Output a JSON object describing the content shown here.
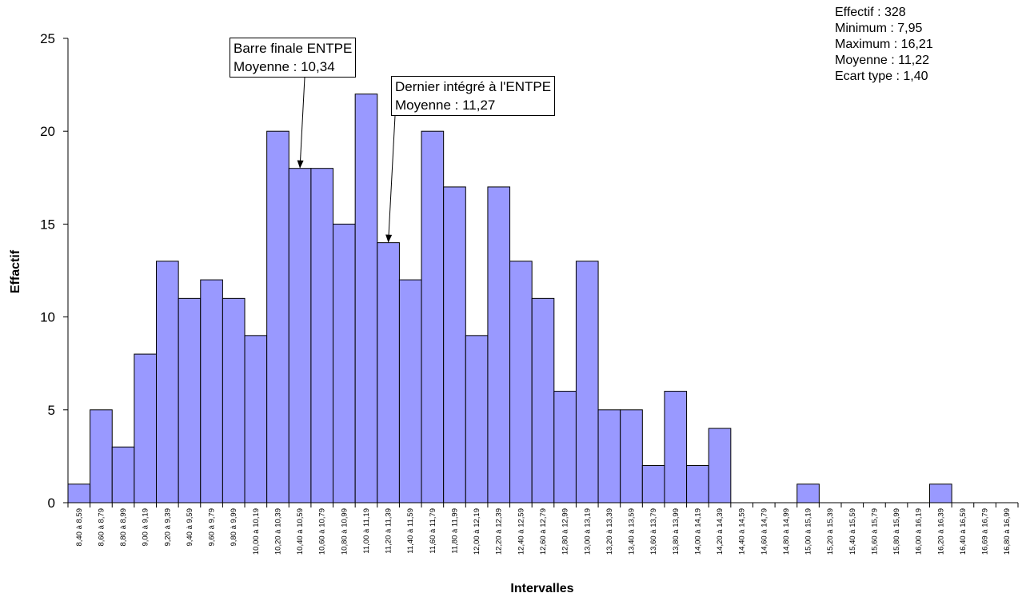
{
  "stats": {
    "effectif": "Effectif : 328",
    "minimum": "Minimum : 7,95",
    "maximum": "Maximum : 16,21",
    "moyenne": "Moyenne : 11,22",
    "ecart_type": "Ecart type : 1,40"
  },
  "annotations": [
    {
      "line1": "Barre finale ENTPE",
      "line2": "Moyenne : 10,34",
      "category": "10,40 à 10,59"
    },
    {
      "line1": "Dernier intégré à l'ENTPE",
      "line2": "Moyenne : 11,27",
      "category": "11,20 à 11,39"
    }
  ],
  "chart_data": {
    "type": "bar",
    "title": "",
    "xlabel": "Intervalles",
    "ylabel": "Effactif",
    "ylim": [
      0,
      25
    ],
    "yticks": [
      0,
      5,
      10,
      15,
      20,
      25
    ],
    "bar_color": "#9999FF",
    "grid": false,
    "categories": [
      "8,40 à 8,59",
      "8,60 à 8,79",
      "8,80 à 8,99",
      "9,00 à 9,19",
      "9,20 à 9,39",
      "9,40 à 9,59",
      "9,60 à 9,79",
      "9,80 à 9,99",
      "10,00 à 10,19",
      "10,20 à 10,39",
      "10,40 à 10,59",
      "10,60 à 10,79",
      "10,80 à 10,99",
      "11,00 à 11,19",
      "11,20 à 11,39",
      "11,40 à 11,59",
      "11,60 à 11,79",
      "11,80 à 11,99",
      "12,00 à 12,19",
      "12,20 à 12,39",
      "12,40 à 12,59",
      "12,60 à 12,79",
      "12,80 à 12,99",
      "13,00 à 13,19",
      "13,20 à 13,39",
      "13,40 à 13,59",
      "13,60 à 13,79",
      "13,80 à 13,99",
      "14,00 à 14,19",
      "14,20 à 14,39",
      "14,40 à 14,59",
      "14,60 à 14,79",
      "14,80 à 14,99",
      "15,00 à 15,19",
      "15,20 à 15,39",
      "15,40 à 15,59",
      "15,60 à 15,79",
      "15,80 à 15,99",
      "16,00 à 16,19",
      "16,20 à 16,39",
      "16,40 à 16,59",
      "16,69 à 16,79",
      "16,80 à 16,99"
    ],
    "values": [
      1,
      5,
      3,
      8,
      13,
      11,
      12,
      11,
      9,
      20,
      18,
      18,
      15,
      22,
      14,
      12,
      20,
      17,
      9,
      17,
      13,
      11,
      6,
      13,
      5,
      5,
      2,
      6,
      2,
      4,
      0,
      0,
      0,
      1,
      0,
      0,
      0,
      0,
      0,
      1,
      0,
      0,
      0
    ]
  }
}
